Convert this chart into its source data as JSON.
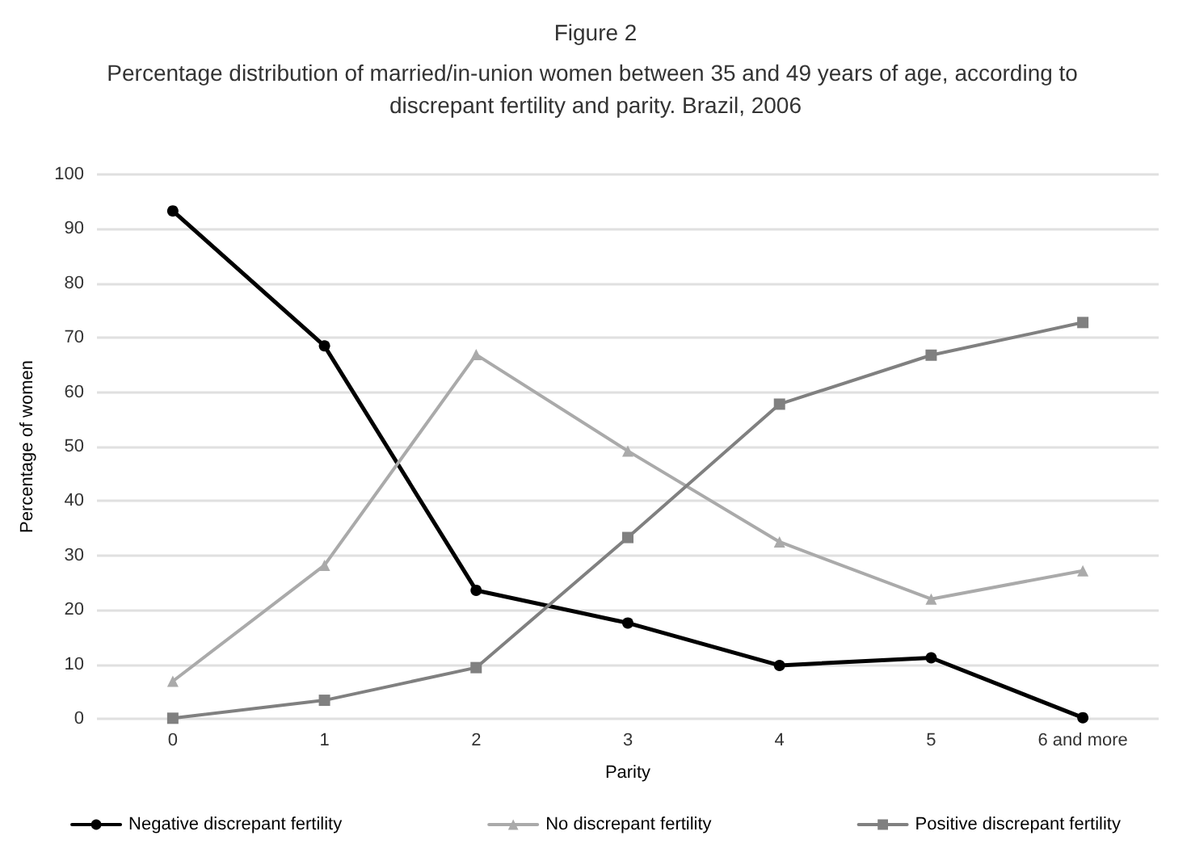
{
  "chart_data": {
    "type": "line",
    "title": "Figure 2",
    "subtitle": "Percentage distribution of married/in-union women between 35 and 49 years of age, according to discrepant fertility and parity. Brazil, 2006",
    "xlabel": "Parity",
    "ylabel": "Percentage of women",
    "categories": [
      "0",
      "1",
      "2",
      "3",
      "4",
      "5",
      "6 and more"
    ],
    "series": [
      {
        "name": "Negative discrepant fertility",
        "color": "#000000",
        "marker": "circle",
        "values": [
          93.3,
          68.5,
          23.6,
          17.6,
          9.8,
          11.2,
          0.2
        ]
      },
      {
        "name": "No discrepant fertility",
        "color": "#aaaaaa",
        "marker": "triangle",
        "values": [
          6.9,
          28.2,
          66.9,
          49.2,
          32.5,
          22.0,
          27.2
        ]
      },
      {
        "name": "Positive discrepant fertility",
        "color": "#808080",
        "marker": "square",
        "values": [
          0.1,
          3.4,
          9.4,
          33.3,
          57.8,
          66.8,
          72.8
        ]
      }
    ],
    "ylim": [
      0,
      100
    ],
    "yticks": [
      0,
      10,
      20,
      30,
      40,
      50,
      60,
      70,
      80,
      90,
      100
    ],
    "grid": "y",
    "legend": "bottom",
    "line_style": "solid"
  }
}
